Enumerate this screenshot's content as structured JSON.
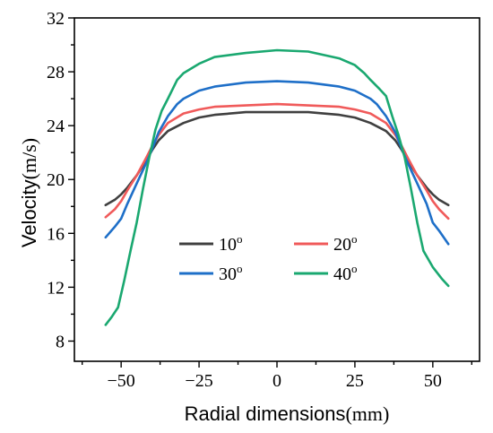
{
  "chart_data": {
    "type": "line",
    "xlabel": "Radial dimensions",
    "xunit": "(mm)",
    "ylabel": "Velocity",
    "yunit": "(m/s)",
    "xlim": [
      -65,
      65
    ],
    "ylim": [
      6.5,
      32
    ],
    "xticks": [
      -50,
      -25,
      0,
      25,
      50
    ],
    "xtick_labels": [
      "−50",
      "−25",
      "0",
      "25",
      "50"
    ],
    "xminor": [
      -62.5,
      -37.5,
      -12.5,
      12.5,
      37.5,
      62.5
    ],
    "yticks": [
      8,
      12,
      16,
      20,
      24,
      28,
      32
    ],
    "ytick_labels": [
      "8",
      "12",
      "16",
      "20",
      "24",
      "28",
      "32"
    ],
    "grid": false,
    "legend": "center",
    "series": [
      {
        "name": "10",
        "name_sup": "o",
        "color": "#404040",
        "x": [
          -55,
          -52,
          -50,
          -48,
          -45,
          -42,
          -40,
          -38,
          -35,
          -30,
          -25,
          -20,
          -10,
          0,
          10,
          20,
          25,
          30,
          35,
          38,
          40,
          42,
          45,
          48,
          50,
          52,
          55
        ],
        "y": [
          18.1,
          18.5,
          18.9,
          19.4,
          20.3,
          21.4,
          22.2,
          22.9,
          23.6,
          24.2,
          24.6,
          24.8,
          25.0,
          25.0,
          25.0,
          24.8,
          24.6,
          24.2,
          23.6,
          22.9,
          22.2,
          21.4,
          20.3,
          19.4,
          18.9,
          18.5,
          18.1
        ]
      },
      {
        "name": "20",
        "name_sup": "o",
        "color": "#f05a5a",
        "x": [
          -55,
          -52,
          -50,
          -48,
          -45,
          -42,
          -40,
          -38,
          -35,
          -30,
          -25,
          -20,
          -10,
          0,
          10,
          20,
          25,
          30,
          35,
          38,
          40,
          42,
          45,
          48,
          50,
          52,
          55
        ],
        "y": [
          17.2,
          17.8,
          18.4,
          19.2,
          20.3,
          21.6,
          22.5,
          23.3,
          24.2,
          24.9,
          25.2,
          25.4,
          25.5,
          25.6,
          25.5,
          25.4,
          25.2,
          24.9,
          24.2,
          23.3,
          22.5,
          21.6,
          20.3,
          19.2,
          18.4,
          17.8,
          17.1
        ]
      },
      {
        "name": "30",
        "name_sup": "o",
        "color": "#1e6fc8",
        "x": [
          -55,
          -52,
          -50,
          -48,
          -45,
          -42,
          -40,
          -38,
          -35,
          -32,
          -30,
          -25,
          -20,
          -10,
          0,
          10,
          20,
          25,
          30,
          32,
          35,
          38,
          40,
          42,
          45,
          48,
          50,
          52,
          55
        ],
        "y": [
          15.7,
          16.5,
          17.1,
          18.2,
          19.7,
          21.2,
          22.3,
          23.5,
          24.7,
          25.6,
          26.0,
          26.6,
          26.9,
          27.2,
          27.3,
          27.2,
          26.9,
          26.6,
          26.0,
          25.6,
          24.7,
          23.5,
          22.3,
          21.2,
          19.7,
          18.2,
          16.8,
          16.2,
          15.2
        ]
      },
      {
        "name": "40",
        "name_sup": "o",
        "color": "#1aa870",
        "x": [
          -55,
          -53,
          -51,
          -49,
          -47,
          -45,
          -43,
          -41,
          -39,
          -37,
          -35,
          -32,
          -30,
          -25,
          -20,
          -10,
          0,
          10,
          20,
          25,
          28,
          30,
          33,
          35,
          37,
          39,
          41,
          43,
          45,
          47,
          50,
          53,
          55
        ],
        "y": [
          9.2,
          9.8,
          10.5,
          12.5,
          14.7,
          16.8,
          19.3,
          21.6,
          23.7,
          25.1,
          26.0,
          27.4,
          27.9,
          28.6,
          29.1,
          29.4,
          29.6,
          29.5,
          29.0,
          28.5,
          27.9,
          27.4,
          26.7,
          26.2,
          24.7,
          23.3,
          21.6,
          19.3,
          16.8,
          14.7,
          13.5,
          12.6,
          12.1
        ]
      }
    ]
  }
}
